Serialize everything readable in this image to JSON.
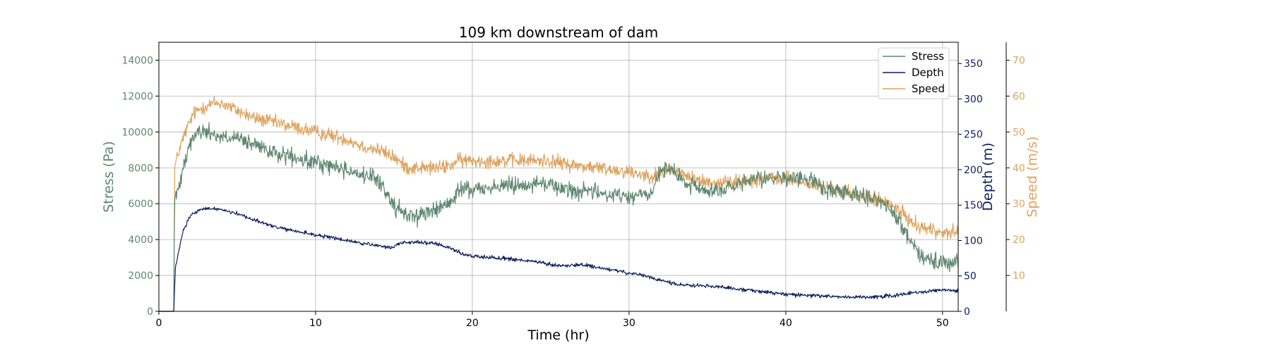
{
  "chart_data": {
    "type": "line",
    "title": "109 km downstream of dam",
    "xlabel": "Time (hr)",
    "xlim": [
      0,
      51
    ],
    "xticks": [
      0,
      10,
      20,
      30,
      40,
      50
    ],
    "grid": true,
    "legend": {
      "placement": "top-right",
      "entries": [
        "Stress",
        "Depth",
        "Speed"
      ]
    },
    "axes": {
      "stress": {
        "label": "Stress (Pa)",
        "position": "left",
        "lim": [
          0,
          15000
        ],
        "ticks": [
          0,
          2000,
          4000,
          6000,
          8000,
          10000,
          12000,
          14000
        ],
        "color": "#5E8770"
      },
      "depth": {
        "label": "Depth (m)",
        "position": "right",
        "lim": [
          0,
          380
        ],
        "ticks": [
          0,
          50,
          100,
          150,
          200,
          250,
          300,
          350
        ],
        "color": "#0E1F5B"
      },
      "speed": {
        "label": "Speed (m/s)",
        "position": "right-offset",
        "lim": [
          0,
          75
        ],
        "ticks": [
          10,
          20,
          30,
          40,
          50,
          60,
          70
        ],
        "color": "#DDA35F"
      }
    },
    "series": [
      {
        "name": "Stress",
        "axis": "stress",
        "color": "#5E8770",
        "noise": 700,
        "x": [
          0,
          0.95,
          1.0,
          1.2,
          1.5,
          2.0,
          2.5,
          3.0,
          3.5,
          4.0,
          5.0,
          6.0,
          7.0,
          8.0,
          9.0,
          10.0,
          11.0,
          12.0,
          13.0,
          14.0,
          14.8,
          15.2,
          15.5,
          16.0,
          16.5,
          17.0,
          17.5,
          18.0,
          18.5,
          18.9,
          19.1,
          19.5,
          20.0,
          21.0,
          22.0,
          23.0,
          24.0,
          25.0,
          25.5,
          26.0,
          27.0,
          28.0,
          29.0,
          30.0,
          31.0,
          31.5,
          32.0,
          32.3,
          32.8,
          33.5,
          34.0,
          35.0,
          36.0,
          37.0,
          38.0,
          39.0,
          40.0,
          41.0,
          42.0,
          42.5,
          43.0,
          44.0,
          45.0,
          45.5,
          46.0,
          46.5,
          47.0,
          47.5,
          48.0,
          48.5,
          49.0,
          49.5,
          50.0,
          51.0
        ],
        "values": [
          0,
          0,
          6300,
          6600,
          8000,
          9500,
          10000,
          10000,
          9900,
          9700,
          9600,
          9300,
          8900,
          8700,
          8400,
          8300,
          8100,
          7900,
          7600,
          7300,
          6200,
          5700,
          5500,
          5400,
          5300,
          5500,
          5600,
          5800,
          6000,
          6200,
          6800,
          6900,
          6800,
          6900,
          7000,
          7100,
          7100,
          7100,
          6900,
          6800,
          6700,
          6600,
          6500,
          6400,
          6500,
          6600,
          7900,
          7900,
          7800,
          7200,
          7000,
          6700,
          6800,
          7000,
          7300,
          7500,
          7400,
          7400,
          7200,
          6800,
          6700,
          6700,
          6500,
          6300,
          6100,
          5800,
          5300,
          4700,
          3800,
          3400,
          2900,
          2700,
          2600,
          2700
        ]
      },
      {
        "name": "Depth",
        "axis": "depth",
        "color": "#0E1F5B",
        "noise": 4,
        "x": [
          0,
          0.95,
          1.05,
          1.5,
          2.0,
          2.5,
          3.0,
          3.5,
          4.0,
          5.0,
          6.0,
          7.0,
          8.0,
          9.0,
          10.0,
          11.0,
          12.0,
          13.0,
          14.0,
          14.8,
          15.5,
          16.5,
          17.5,
          18.5,
          19.5,
          20.0,
          22.0,
          24.0,
          25.0,
          26.0,
          27.0,
          28.0,
          29.0,
          30.0,
          31.0,
          32.0,
          33.0,
          35.0,
          36.0,
          38.0,
          40.0,
          42.0,
          44.0,
          46.0,
          47.0,
          48.0,
          49.0,
          50.0,
          51.0
        ],
        "values": [
          0,
          0,
          60,
          110,
          135,
          142,
          145,
          145,
          144,
          138,
          130,
          122,
          116,
          112,
          108,
          104,
          100,
          96,
          92,
          90,
          97,
          98,
          96,
          90,
          80,
          78,
          75,
          70,
          66,
          64,
          66,
          62,
          58,
          54,
          50,
          44,
          38,
          36,
          34,
          29,
          24,
          22,
          20,
          21,
          22,
          26,
          28,
          30,
          29
        ]
      },
      {
        "name": "Speed",
        "axis": "speed",
        "color": "#DDA35F",
        "noise": 3,
        "x": [
          0,
          0.95,
          1.0,
          1.3,
          1.7,
          2.2,
          2.8,
          3.5,
          4.0,
          5.0,
          6.0,
          7.0,
          8.0,
          9.0,
          10.0,
          11.0,
          12.0,
          13.0,
          14.0,
          15.0,
          15.5,
          16.0,
          17.0,
          18.0,
          18.8,
          19.0,
          19.5,
          20.0,
          22.0,
          24.0,
          25.0,
          26.0,
          28.0,
          30.0,
          31.0,
          32.0,
          32.5,
          33.0,
          34.0,
          35.0,
          36.0,
          37.0,
          38.0,
          39.0,
          40.0,
          41.0,
          42.0,
          43.0,
          44.0,
          45.0,
          46.0,
          46.5,
          47.0,
          47.5,
          48.0,
          48.5,
          49.0,
          50.0,
          51.0
        ],
        "values": [
          0,
          0,
          40,
          45,
          50,
          55,
          57,
          58,
          58,
          56,
          54,
          53,
          52,
          51,
          50,
          49,
          48,
          46,
          45,
          43,
          41,
          40,
          40,
          40,
          41,
          42,
          42,
          42,
          42,
          42,
          42,
          41,
          40,
          39,
          38,
          38,
          40,
          39,
          37,
          36,
          36,
          36,
          37,
          37,
          37,
          36,
          35,
          34,
          33,
          32,
          31,
          30,
          29,
          27,
          25,
          24,
          23,
          22,
          22
        ]
      }
    ]
  }
}
